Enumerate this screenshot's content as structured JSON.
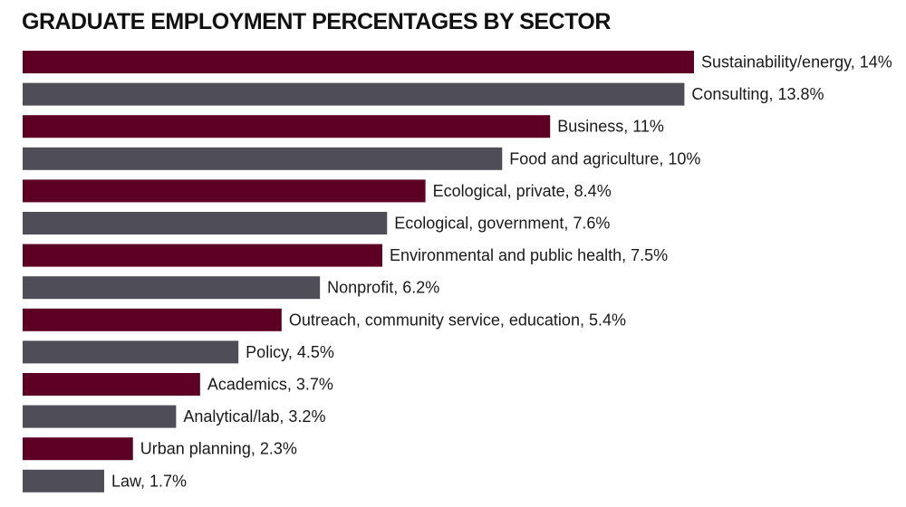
{
  "chart_data": {
    "type": "bar",
    "orientation": "horizontal",
    "title": "GRADUATE EMPLOYMENT PERCENTAGES BY SECTOR",
    "categories": [
      "Sustainability/energy",
      "Consulting",
      "Business",
      "Food and agriculture",
      "Ecological, private",
      "Ecological, government",
      "Environmental and public health",
      "Nonprofit",
      "Outreach, community service, education",
      "Policy",
      "Academics",
      "Analytical/lab",
      "Urban planning",
      "Law"
    ],
    "values": [
      14,
      13.8,
      11,
      10,
      8.4,
      7.6,
      7.5,
      6.2,
      5.4,
      4.5,
      3.7,
      3.2,
      2.3,
      1.7
    ],
    "labels": [
      "Sustainability/energy, 14%",
      "Consulting, 13.8%",
      "Business, 11%",
      "Food and agriculture, 10%",
      "Ecological, private, 8.4%",
      "Ecological, government, 7.6%",
      "Environmental and public health, 7.5%",
      "Nonprofit, 6.2%",
      "Outreach, community service, education, 5.4%",
      "Policy, 4.5%",
      "Academics, 3.7%",
      "Analytical/lab, 3.2%",
      "Urban planning, 2.3%",
      "Law, 1.7%"
    ],
    "unit": "%",
    "xlim": [
      0,
      14
    ],
    "grid": false,
    "colors": [
      "#5e0024",
      "#4f4e58"
    ]
  }
}
